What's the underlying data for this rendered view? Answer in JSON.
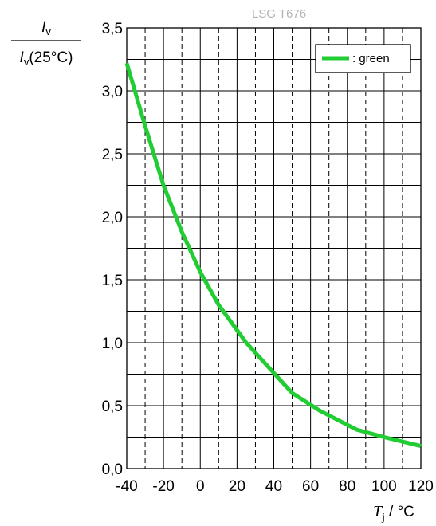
{
  "chart_data": {
    "type": "line",
    "title": "LSG T676",
    "ylabel": {
      "numerator": "I",
      "numerator_sub": "v",
      "denominator": "I",
      "denominator_sub": "v",
      "denominator_tail": "(25°C)"
    },
    "xlabel": {
      "symbol": "T",
      "symbol_sub": "j",
      "unit": "/ °C"
    },
    "xlim": [
      -40,
      120
    ],
    "ylim": [
      0,
      3.5
    ],
    "x_ticks": [
      "-40",
      "-20",
      "0",
      "20",
      "40",
      "60",
      "80",
      "100",
      "120"
    ],
    "y_ticks": [
      "0,0",
      "0,5",
      "1,0",
      "1,5",
      "2,0",
      "2,5",
      "3,0",
      "3,5"
    ],
    "grid": true,
    "legend": {
      "placement": "top-right",
      "entries": [
        ": green"
      ]
    },
    "series": [
      {
        "name": ": green",
        "color": "#22cc33",
        "x": [
          -40,
          -30,
          -20,
          -10,
          0,
          10,
          25,
          40,
          50,
          65,
          85,
          100,
          120
        ],
        "y": [
          3.22,
          2.72,
          2.25,
          1.88,
          1.56,
          1.3,
          1.0,
          0.76,
          0.6,
          0.46,
          0.31,
          0.25,
          0.18
        ]
      }
    ]
  }
}
